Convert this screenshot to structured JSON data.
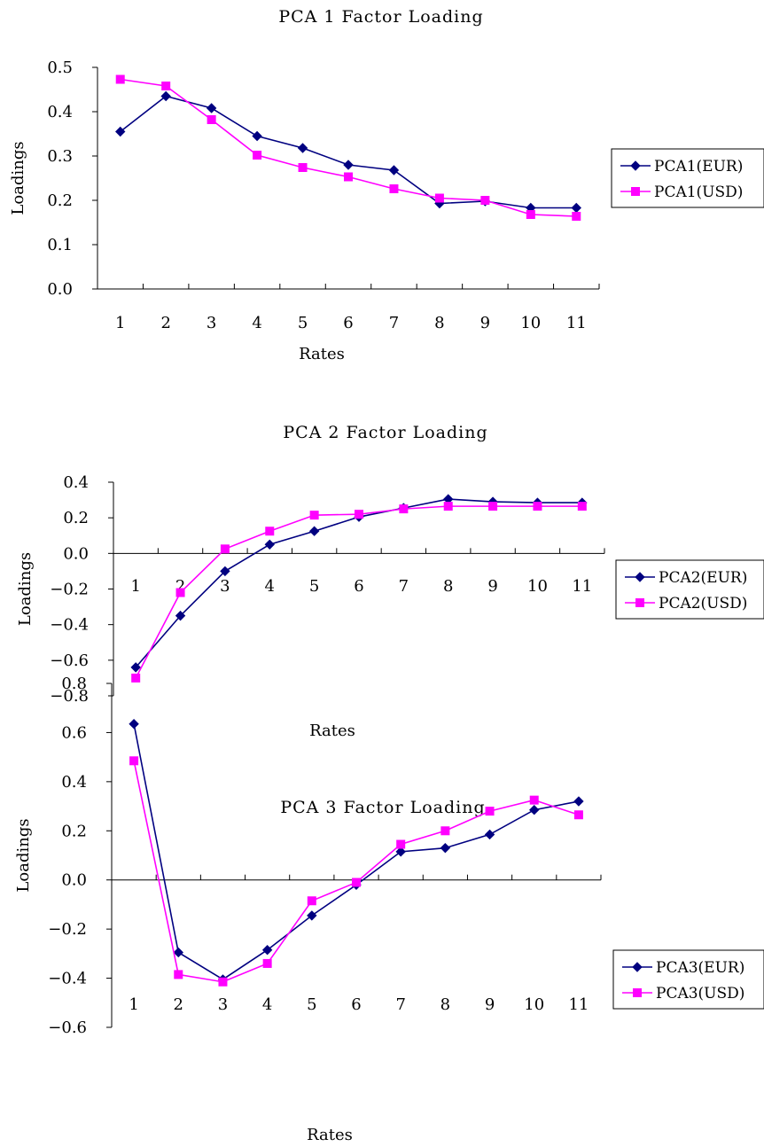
{
  "chart_data": [
    {
      "type": "line",
      "title": "PCA 1 Factor Loading",
      "xlabel": "Rates",
      "ylabel": "Loadings",
      "categories": [
        "1",
        "2",
        "3",
        "4",
        "5",
        "6",
        "7",
        "8",
        "9",
        "10",
        "11"
      ],
      "yticks": [
        "0.0",
        "0.1",
        "0.2",
        "0.3",
        "0.4",
        "0.5"
      ],
      "ylim": [
        0,
        0.5
      ],
      "grid": false,
      "legend_position": "right",
      "series": [
        {
          "name": "PCA1(EUR)",
          "color": "#000080",
          "marker": "diamond",
          "values": [
            0.355,
            0.435,
            0.408,
            0.345,
            0.318,
            0.28,
            0.268,
            0.193,
            0.198,
            0.183,
            0.183
          ]
        },
        {
          "name": "PCA1(USD)",
          "color": "#FF00FF",
          "marker": "square",
          "values": [
            0.473,
            0.458,
            0.382,
            0.302,
            0.274,
            0.253,
            0.226,
            0.205,
            0.2,
            0.168,
            0.164
          ]
        }
      ]
    },
    {
      "type": "line",
      "title": "PCA 2 Factor Loading",
      "xlabel": "Rates",
      "ylabel": "Loadings",
      "categories": [
        "1",
        "2",
        "3",
        "4",
        "5",
        "6",
        "7",
        "8",
        "9",
        "10",
        "11"
      ],
      "yticks": [
        "−0.8",
        "−0.6",
        "−0.4",
        "−0.2",
        "0.0",
        "0.2",
        "0.4"
      ],
      "ylim": [
        -0.8,
        0.4
      ],
      "grid": false,
      "legend_position": "right",
      "series": [
        {
          "name": "PCA2(EUR)",
          "color": "#000080",
          "marker": "diamond",
          "values": [
            -0.64,
            -0.35,
            -0.1,
            0.05,
            0.125,
            0.205,
            0.255,
            0.305,
            0.29,
            0.285,
            0.285
          ]
        },
        {
          "name": "PCA2(USD)",
          "color": "#FF00FF",
          "marker": "square",
          "values": [
            -0.7,
            -0.22,
            0.025,
            0.125,
            0.215,
            0.22,
            0.25,
            0.265,
            0.265,
            0.265,
            0.265
          ]
        }
      ]
    },
    {
      "type": "line",
      "title": "PCA 3 Factor Loading",
      "xlabel": "Rates",
      "ylabel": "Loadings",
      "categories": [
        "1",
        "2",
        "3",
        "4",
        "5",
        "6",
        "7",
        "8",
        "9",
        "10",
        "11"
      ],
      "yticks": [
        "−0.6",
        "−0.4",
        "−0.2",
        "0.0",
        "0.2",
        "0.4",
        "0.6",
        "0.8"
      ],
      "ylim": [
        -0.6,
        0.8
      ],
      "grid": false,
      "legend_position": "right",
      "series": [
        {
          "name": "PCA3(EUR)",
          "color": "#000080",
          "marker": "diamond",
          "values": [
            0.635,
            -0.295,
            -0.405,
            -0.285,
            -0.145,
            -0.02,
            0.115,
            0.13,
            0.185,
            0.285,
            0.32
          ]
        },
        {
          "name": "PCA3(USD)",
          "color": "#FF00FF",
          "marker": "square",
          "values": [
            0.485,
            -0.385,
            -0.415,
            -0.34,
            -0.085,
            -0.01,
            0.145,
            0.2,
            0.28,
            0.325,
            0.265
          ]
        }
      ]
    }
  ]
}
